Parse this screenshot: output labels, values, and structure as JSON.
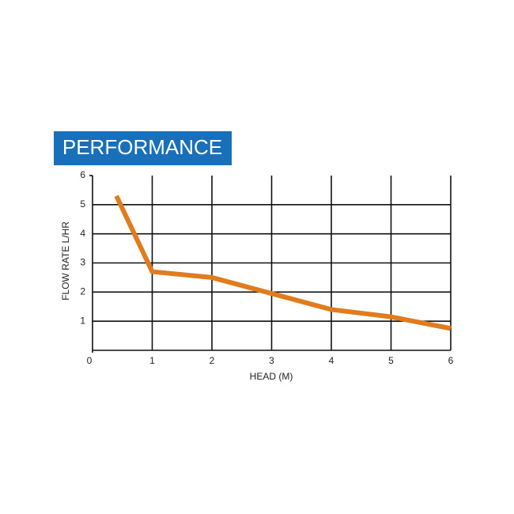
{
  "chart_data": {
    "type": "line",
    "title": "PERFORMANCE",
    "x_label": "HEAD (M)",
    "y_label": "FLOW RATE L/HR",
    "x": [
      0.4,
      1,
      2,
      3,
      4,
      5,
      6
    ],
    "series": [
      {
        "color": "#e07b1e",
        "values": [
          5.3,
          2.7,
          2.5,
          1.95,
          1.4,
          1.15,
          0.75
        ]
      }
    ],
    "xlim": [
      0,
      6
    ],
    "ylim": [
      0,
      6
    ],
    "xticks": [
      0,
      1,
      2,
      3,
      4,
      5,
      6
    ],
    "yticks": [
      1,
      2,
      3,
      4,
      5,
      6
    ],
    "grid": true
  }
}
